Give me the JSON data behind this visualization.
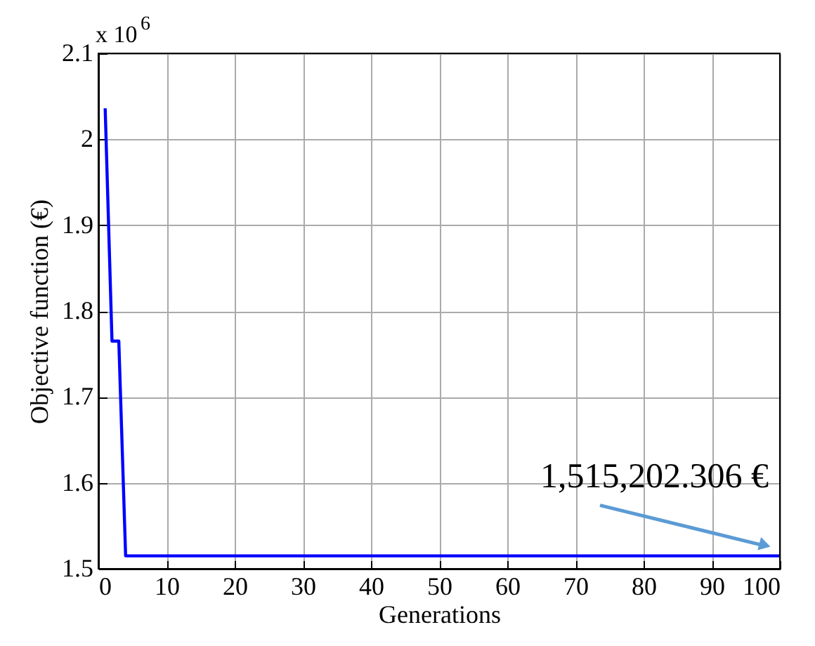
{
  "chart_data": {
    "type": "line",
    "xlabel": "Generations",
    "ylabel": "Objective function (€)",
    "x": [
      1,
      2,
      3,
      4,
      100
    ],
    "series": [
      {
        "color": "#0000ff",
        "values": [
          2.036,
          1.765,
          1.765,
          1.515,
          1.515
        ]
      }
    ],
    "xlim": [
      0,
      100
    ],
    "xticks": [
      0,
      10,
      20,
      30,
      40,
      50,
      60,
      70,
      80,
      90,
      100
    ],
    "ylim": [
      1.5,
      2.1
    ],
    "yticks": [
      1.5,
      1.6,
      1.7,
      1.8,
      1.9,
      2,
      2.1
    ],
    "grid": true,
    "marker": "none",
    "line_style": "solid",
    "annotations": [
      "x 10$^{6}$",
      {
        "text": "1,515,202.306 €",
        "x": 100,
        "y": 1.515
      }
    ]
  }
}
